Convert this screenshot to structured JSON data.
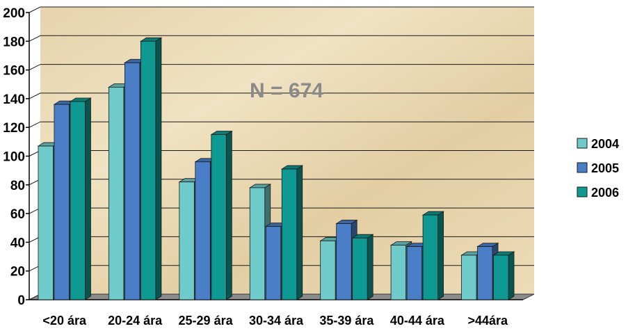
{
  "chart_data": {
    "type": "bar",
    "title": "",
    "xlabel": "",
    "ylabel": "",
    "ylim": [
      0,
      200
    ],
    "yticks": [
      0,
      20,
      40,
      60,
      80,
      100,
      120,
      140,
      160,
      180,
      200
    ],
    "categories": [
      "<20 ára",
      "20-24 ára",
      "25-29 ára",
      "30-34 ára",
      "35-39 ára",
      "40-44 ára",
      ">44ára"
    ],
    "series": [
      {
        "name": "2004",
        "color": "#6ecbc9",
        "values": [
          107,
          148,
          82,
          78,
          41,
          38,
          31
        ]
      },
      {
        "name": "2005",
        "color": "#4a7fc8",
        "values": [
          136,
          165,
          96,
          51,
          53,
          37,
          37
        ]
      },
      {
        "name": "2006",
        "color": "#0e9a92",
        "values": [
          138,
          180,
          115,
          91,
          43,
          59,
          31
        ]
      }
    ],
    "annotation": "N = 674",
    "legend_position": "right",
    "grid": true
  }
}
